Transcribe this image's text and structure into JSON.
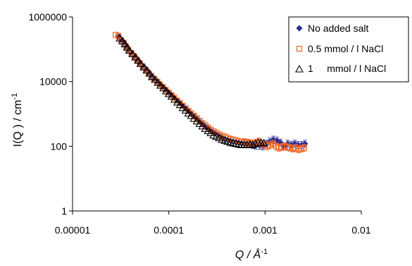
{
  "chart_data": {
    "type": "scatter",
    "title": "",
    "xlabel": "Q / Å",
    "xlabel_superscript": "-1",
    "ylabel": "I(Q ) / cm",
    "ylabel_superscript": "-1",
    "xscale": "log",
    "yscale": "log",
    "xlim": [
      1e-05,
      0.01
    ],
    "ylim": [
      1,
      1000000
    ],
    "x_tick_labels": [
      "0.00001",
      "0.0001",
      "0.001",
      "0.01"
    ],
    "y_tick_labels": [
      "1",
      "100",
      "10000",
      "1000000"
    ],
    "grid": false,
    "legend_position": "top-right",
    "series": [
      {
        "name": "No added salt",
        "marker": "diamond-filled",
        "color": "#2e3192",
        "x": [
          3e-05,
          3.2e-05,
          3.4e-05,
          3.6e-05,
          3.8e-05,
          4e-05,
          4.3e-05,
          4.6e-05,
          4.9e-05,
          5.2e-05,
          5.6e-05,
          6e-05,
          6.4e-05,
          6.8e-05,
          7.3e-05,
          7.8e-05,
          8.3e-05,
          8.9e-05,
          9.5e-05,
          0.000101,
          0.000108,
          0.000116,
          0.000124,
          0.000132,
          0.000141,
          0.000151,
          0.000161,
          0.000172,
          0.000184,
          0.000197,
          0.00021,
          0.000225,
          0.00024,
          0.000257,
          0.000274,
          0.000293,
          0.000313,
          0.000335,
          0.000358,
          0.000382,
          0.000409,
          0.000437,
          0.000467,
          0.000499,
          0.000533,
          0.00057,
          0.00061,
          0.000651,
          0.0007,
          0.00075,
          0.0008,
          0.00088,
          0.00095,
          0.00103,
          0.00112,
          0.00122,
          0.00133,
          0.00145,
          0.00158,
          0.00172,
          0.00187,
          0.00203,
          0.0022,
          0.0024,
          0.0026
        ],
        "y": [
          250000,
          200000,
          160000,
          125000,
          100000,
          80000,
          62000,
          48000,
          40000,
          32000,
          26000,
          20000,
          16000,
          12500,
          10500,
          9000,
          7500,
          6200,
          5200,
          4400,
          3700,
          3000,
          2500,
          2100,
          1750,
          1450,
          1200,
          1000,
          850,
          700,
          580,
          490,
          420,
          360,
          310,
          270,
          240,
          210,
          190,
          170,
          160,
          150,
          140,
          135,
          130,
          125,
          120,
          120,
          115,
          110,
          105,
          105,
          100,
          120,
          140,
          160,
          150,
          130,
          100,
          120,
          110,
          120,
          110,
          110,
          120
        ]
      },
      {
        "name": "0.5 mmol / l NaCl",
        "marker": "square-open",
        "color": "#f26522",
        "x": [
          2.8e-05,
          3e-05,
          3.2e-05,
          3.4e-05,
          3.6e-05,
          3.8e-05,
          4.1e-05,
          4.4e-05,
          4.7e-05,
          5e-05,
          5.4e-05,
          5.8e-05,
          6.2e-05,
          6.6e-05,
          7.1e-05,
          7.6e-05,
          8.1e-05,
          8.7e-05,
          9.3e-05,
          0.0001,
          0.000107,
          0.000114,
          0.000122,
          0.000131,
          0.00014,
          0.00015,
          0.00016,
          0.000171,
          0.000183,
          0.000196,
          0.00021,
          0.000224,
          0.00024,
          0.000256,
          0.000274,
          0.000293,
          0.000314,
          0.000336,
          0.000359,
          0.000384,
          0.000411,
          0.00044,
          0.00047,
          0.000503,
          0.000538,
          0.000576,
          0.000616,
          0.000659,
          0.000705,
          0.000754,
          0.000807,
          0.000864,
          0.000924,
          0.000989,
          0.00106,
          0.00113,
          0.00121,
          0.0013,
          0.00139,
          0.00149,
          0.00159,
          0.0017,
          0.00182,
          0.00195,
          0.00208,
          0.00223,
          0.00238,
          0.00255
        ],
        "y": [
          280000,
          260000,
          190000,
          160000,
          120000,
          95000,
          75000,
          60000,
          46000,
          37000,
          29000,
          23000,
          18000,
          15000,
          12000,
          10000,
          8200,
          6800,
          5600,
          4600,
          3800,
          3200,
          2600,
          2200,
          1800,
          1500,
          1250,
          1050,
          880,
          740,
          620,
          520,
          450,
          380,
          330,
          290,
          260,
          230,
          210,
          200,
          180,
          170,
          160,
          150,
          145,
          140,
          135,
          130,
          125,
          120,
          130,
          140,
          120,
          110,
          100,
          110,
          120,
          100,
          90,
          95,
          100,
          95,
          90,
          85,
          90,
          80,
          85,
          90
        ]
      },
      {
        "name": "1     mmol / l NaCl",
        "marker": "triangle-open",
        "color": "#000000",
        "x": [
          3.1e-05,
          3.3e-05,
          3.5e-05,
          3.7e-05,
          3.9e-05,
          4.2e-05,
          4.5e-05,
          4.8e-05,
          5.1e-05,
          5.5e-05,
          5.9e-05,
          6.3e-05,
          6.7e-05,
          7.2e-05,
          7.7e-05,
          8.2e-05,
          8.8e-05,
          9.4e-05,
          0.0001,
          0.000107,
          0.000115,
          0.000123,
          0.000131,
          0.00014,
          0.00015,
          0.00016,
          0.000171,
          0.000183,
          0.000196,
          0.000209,
          0.000224,
          0.000239,
          0.000256,
          0.000273,
          0.000292,
          0.000312,
          0.000334,
          0.000357,
          0.000382,
          0.000408,
          0.000436,
          0.000466,
          0.000498,
          0.000532,
          0.000569,
          0.000608,
          0.00065,
          0.000695,
          0.000743,
          0.000794,
          0.000849,
          0.000907,
          0.00097
        ],
        "y": [
          220000,
          180000,
          145000,
          115000,
          92000,
          72000,
          57000,
          45000,
          36000,
          28000,
          22500,
          18000,
          14000,
          11500,
          9300,
          7600,
          6300,
          5100,
          4200,
          3500,
          2800,
          2300,
          1900,
          1550,
          1300,
          1050,
          880,
          720,
          600,
          500,
          420,
          350,
          300,
          260,
          220,
          200,
          180,
          160,
          150,
          140,
          130,
          125,
          120,
          115,
          110,
          110,
          110,
          115,
          110,
          120,
          130,
          130,
          125
        ]
      }
    ]
  }
}
